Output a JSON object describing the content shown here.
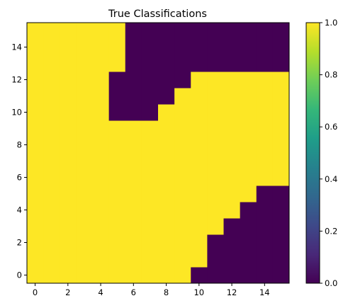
{
  "chart_data": {
    "type": "heatmap",
    "title": "True Classifications",
    "xlabel": "",
    "ylabel": "",
    "x": [
      0,
      1,
      2,
      3,
      4,
      5,
      6,
      7,
      8,
      9,
      10,
      11,
      12,
      13,
      14,
      15
    ],
    "y": [
      0,
      1,
      2,
      3,
      4,
      5,
      6,
      7,
      8,
      9,
      10,
      11,
      12,
      13,
      14,
      15
    ],
    "xlim": [
      -0.5,
      15.5
    ],
    "ylim": [
      -0.5,
      15.5
    ],
    "x_ticks": [
      0,
      2,
      4,
      6,
      8,
      10,
      12,
      14
    ],
    "y_ticks": [
      0,
      2,
      4,
      6,
      8,
      10,
      12,
      14
    ],
    "origin": "lower",
    "colormap": "viridis",
    "colors": {
      "low": "#440154",
      "high": "#fde725"
    },
    "colorbar": {
      "range": [
        0.0,
        1.0
      ],
      "ticks": [
        "0.0",
        "0.2",
        "0.4",
        "0.6",
        "0.8",
        "1.0"
      ]
    },
    "values": [
      [
        1,
        1,
        1,
        1,
        1,
        1,
        1,
        1,
        1,
        1,
        0,
        0,
        0,
        0,
        0,
        0
      ],
      [
        1,
        1,
        1,
        1,
        1,
        1,
        1,
        1,
        1,
        1,
        1,
        0,
        0,
        0,
        0,
        0
      ],
      [
        1,
        1,
        1,
        1,
        1,
        1,
        1,
        1,
        1,
        1,
        1,
        0,
        0,
        0,
        0,
        0
      ],
      [
        1,
        1,
        1,
        1,
        1,
        1,
        1,
        1,
        1,
        1,
        1,
        1,
        0,
        0,
        0,
        0
      ],
      [
        1,
        1,
        1,
        1,
        1,
        1,
        1,
        1,
        1,
        1,
        1,
        1,
        1,
        0,
        0,
        0
      ],
      [
        1,
        1,
        1,
        1,
        1,
        1,
        1,
        1,
        1,
        1,
        1,
        1,
        1,
        1,
        0,
        0
      ],
      [
        1,
        1,
        1,
        1,
        1,
        1,
        1,
        1,
        1,
        1,
        1,
        1,
        1,
        1,
        1,
        1
      ],
      [
        1,
        1,
        1,
        1,
        1,
        1,
        1,
        1,
        1,
        1,
        1,
        1,
        1,
        1,
        1,
        1
      ],
      [
        1,
        1,
        1,
        1,
        1,
        1,
        1,
        1,
        1,
        1,
        1,
        1,
        1,
        1,
        1,
        1
      ],
      [
        1,
        1,
        1,
        1,
        1,
        1,
        1,
        1,
        1,
        1,
        1,
        1,
        1,
        1,
        1,
        1
      ],
      [
        1,
        1,
        1,
        1,
        1,
        0,
        0,
        0,
        1,
        1,
        1,
        1,
        1,
        1,
        1,
        1
      ],
      [
        1,
        1,
        1,
        1,
        1,
        0,
        0,
        0,
        0,
        1,
        1,
        1,
        1,
        1,
        1,
        1
      ],
      [
        1,
        1,
        1,
        1,
        1,
        0,
        0,
        0,
        0,
        0,
        1,
        1,
        1,
        1,
        1,
        1
      ],
      [
        1,
        1,
        1,
        1,
        1,
        1,
        0,
        0,
        0,
        0,
        0,
        0,
        0,
        0,
        0,
        0
      ],
      [
        1,
        1,
        1,
        1,
        1,
        1,
        0,
        0,
        0,
        0,
        0,
        0,
        0,
        0,
        0,
        0
      ],
      [
        1,
        1,
        1,
        1,
        1,
        1,
        0,
        0,
        0,
        0,
        0,
        0,
        0,
        0,
        0,
        0
      ]
    ]
  }
}
